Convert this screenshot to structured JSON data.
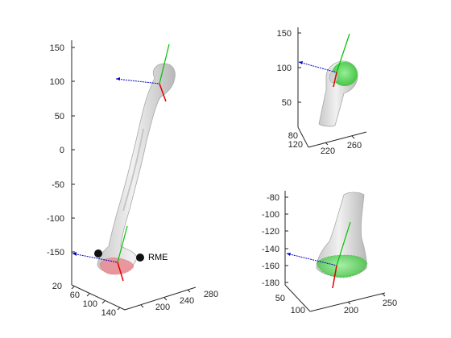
{
  "figure": {
    "colors": {
      "bone_fill": "#e2e2e2",
      "bone_shadow": "#b4b4b4",
      "highlight_green": "#3ccf3c",
      "highlight_pink": "#e98f97",
      "axis_x": "#e00000",
      "axis_y": "#00c000",
      "axis_z": "#0000c8",
      "marker": "#000000"
    },
    "main_view": {
      "z_ticks": [
        "150",
        "100",
        "50",
        "0",
        "-50",
        "-100",
        "-150"
      ],
      "x_ticks": [
        "20",
        "60",
        "100",
        "140"
      ],
      "y_ticks": [
        "200",
        "240",
        "280"
      ],
      "marker_label": "RME"
    },
    "top_right_view": {
      "z_ticks": [
        "150",
        "100",
        "50"
      ],
      "x_ticks": [
        "80",
        "120"
      ],
      "y_ticks": [
        "220",
        "260"
      ]
    },
    "bottom_right_view": {
      "z_ticks": [
        "-80",
        "-100",
        "-120",
        "-140",
        "-160",
        "-180"
      ],
      "x_ticks": [
        "50",
        "100"
      ],
      "y_ticks": [
        "200",
        "250"
      ]
    }
  }
}
